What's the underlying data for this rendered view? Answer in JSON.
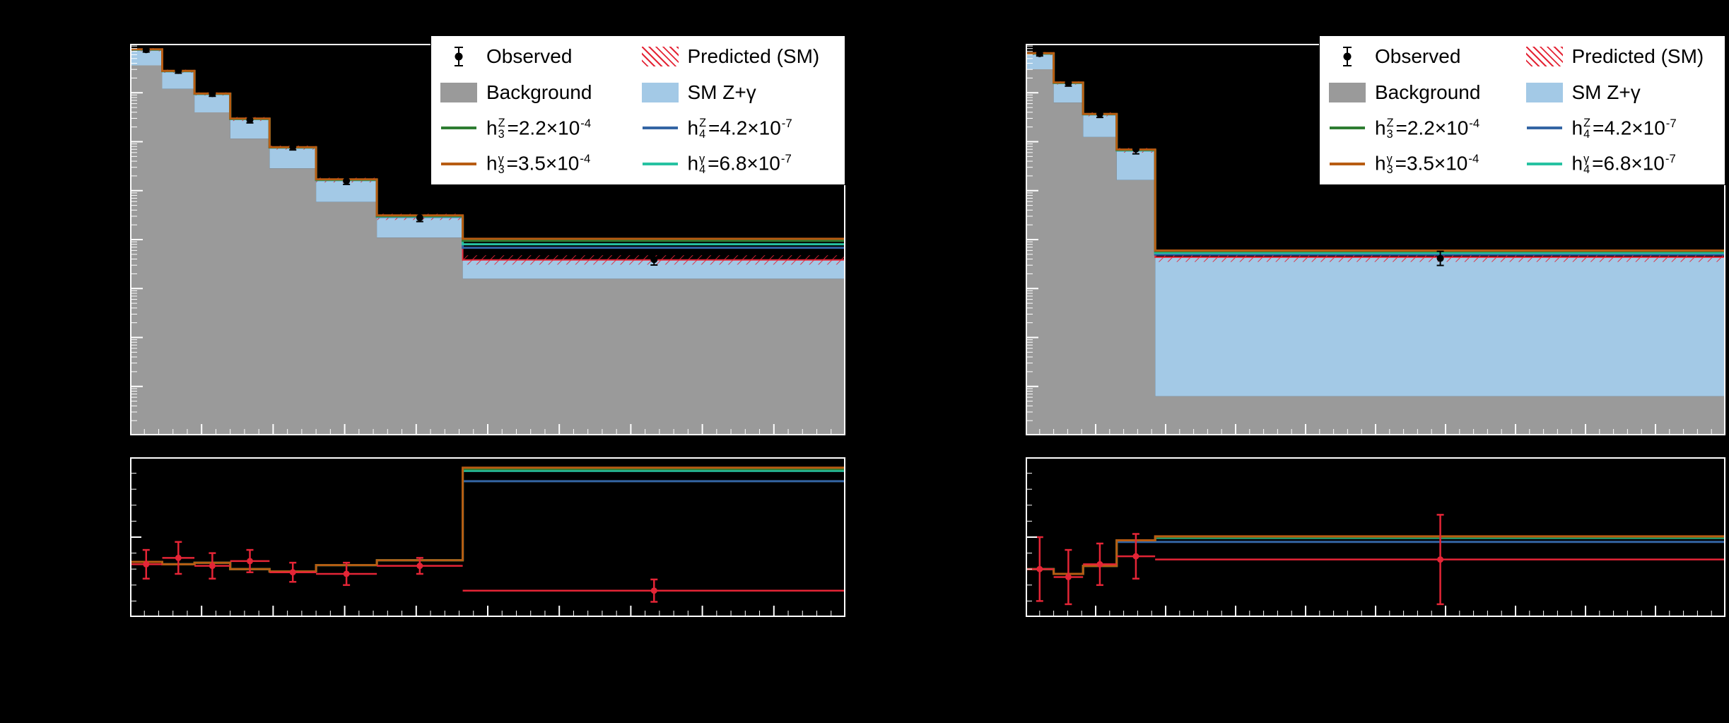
{
  "page": {
    "background": "#000000"
  },
  "colors": {
    "frame": "#ffffff",
    "background": "#9a9a9a",
    "sm_zgamma": "#a3c9e6",
    "predicted": "#e42536",
    "observed": "#000000",
    "h3z": "#2e7d32",
    "h3gamma": "#b85c12",
    "h4z": "#3465a4",
    "h4gamma": "#27c2a2"
  },
  "legend": {
    "observed": "Observed",
    "predicted": "Predicted (SM)",
    "background": "Background",
    "sm_zgamma": "SM Z+γ",
    "h3z": {
      "base": "h",
      "sup": "Z",
      "sub": "3",
      "eq": "=2.2×10",
      "exp": "-4"
    },
    "h4z": {
      "base": "h",
      "sup": "Z",
      "sub": "4",
      "eq": "=4.2×10",
      "exp": "-7"
    },
    "h3gamma": {
      "base": "h",
      "sup": "γ",
      "sub": "3",
      "eq": "=3.5×10",
      "exp": "-4"
    },
    "h4gamma": {
      "base": "h",
      "sup": "γ",
      "sub": "4",
      "eq": "=6.8×10",
      "exp": "-7"
    }
  },
  "chart_data": [
    {
      "id": "left-panel",
      "type": "bar",
      "subtype": "stacked-step-histogram-with-lines-and-points",
      "y_scale": "log",
      "value_units": "fractions of plot frame (x: 0-1 left to right, y: 0-1 bottom to top); numeric axis tick labels are not legible in the source image",
      "legend_position": "top-right",
      "bin_edges": [
        0,
        0.045,
        0.09,
        0.14,
        0.195,
        0.26,
        0.345,
        0.465,
        1.0
      ],
      "stack": {
        "background_top": [
          0.945,
          0.885,
          0.825,
          0.758,
          0.682,
          0.596,
          0.505,
          0.4
        ],
        "total_sm_top": [
          0.985,
          0.93,
          0.872,
          0.808,
          0.735,
          0.652,
          0.558,
          0.448
        ],
        "prediction_band_halfwidth": [
          0.004,
          0.004,
          0.004,
          0.005,
          0.005,
          0.006,
          0.008,
          0.012
        ]
      },
      "lines": {
        "h3z": [
          0.9855,
          0.9305,
          0.8725,
          0.8085,
          0.7355,
          0.653,
          0.56,
          0.497
        ],
        "h3gamma": [
          0.986,
          0.931,
          0.873,
          0.809,
          0.736,
          0.654,
          0.562,
          0.502
        ],
        "h4z": [
          0.985,
          0.93,
          0.872,
          0.808,
          0.735,
          0.652,
          0.558,
          0.479
        ],
        "h4gamma": [
          0.985,
          0.93,
          0.872,
          0.808,
          0.735,
          0.652,
          0.559,
          0.488
        ]
      },
      "observed": {
        "x": [
          0.0225,
          0.0675,
          0.115,
          0.1675,
          0.2275,
          0.3025,
          0.405,
          0.7325
        ],
        "y": [
          0.985,
          0.932,
          0.873,
          0.806,
          0.737,
          0.65,
          0.556,
          0.449
        ],
        "yerr": [
          0.006,
          0.007,
          0.007,
          0.008,
          0.008,
          0.009,
          0.01,
          0.014
        ]
      },
      "ratio": {
        "lines": {
          "h3z": [
            0.345,
            0.33,
            0.34,
            0.3,
            0.285,
            0.325,
            0.355,
            0.925
          ],
          "h3gamma": [
            0.345,
            0.33,
            0.34,
            0.3,
            0.285,
            0.325,
            0.355,
            0.935
          ],
          "h4z": [
            0.345,
            0.33,
            0.34,
            0.3,
            0.285,
            0.325,
            0.355,
            0.85
          ],
          "h4gamma": [
            0.345,
            0.33,
            0.34,
            0.3,
            0.285,
            0.325,
            0.355,
            0.915
          ]
        },
        "points": {
          "x": [
            0.0225,
            0.0675,
            0.115,
            0.1675,
            0.2275,
            0.3025,
            0.405,
            0.7325
          ],
          "y": [
            0.33,
            0.37,
            0.32,
            0.35,
            0.28,
            0.27,
            0.32,
            0.165
          ],
          "yerr": [
            0.09,
            0.1,
            0.08,
            0.07,
            0.06,
            0.07,
            0.05,
            0.07
          ]
        }
      }
    },
    {
      "id": "right-panel",
      "type": "bar",
      "subtype": "stacked-step-histogram-with-lines-and-points",
      "y_scale": "log",
      "value_units": "fractions of plot frame (x: 0-1 left to right, y: 0-1 bottom to top); numeric axis tick labels are not legible in the source image",
      "legend_position": "top-right",
      "bin_edges": [
        0,
        0.04,
        0.082,
        0.13,
        0.185,
        1.0
      ],
      "stack": {
        "background_top": [
          0.935,
          0.85,
          0.762,
          0.652,
          0.1
        ],
        "total_sm_top": [
          0.975,
          0.9,
          0.82,
          0.728,
          0.455
        ],
        "prediction_band_halfwidth": [
          0.004,
          0.004,
          0.005,
          0.006,
          0.012
        ]
      },
      "lines": {
        "h3z": [
          0.9755,
          0.9005,
          0.8205,
          0.729,
          0.47
        ],
        "h3gamma": [
          0.976,
          0.901,
          0.821,
          0.73,
          0.472
        ],
        "h4z": [
          0.975,
          0.9,
          0.82,
          0.728,
          0.462
        ],
        "h4gamma": [
          0.975,
          0.9,
          0.82,
          0.728,
          0.466
        ]
      },
      "observed": {
        "x": [
          0.02,
          0.061,
          0.106,
          0.1575,
          0.5925
        ],
        "y": [
          0.975,
          0.9,
          0.821,
          0.731,
          0.452
        ],
        "yerr": [
          0.006,
          0.008,
          0.009,
          0.012,
          0.018
        ]
      },
      "ratio": {
        "lines": {
          "h3z": [
            0.3,
            0.27,
            0.32,
            0.48,
            0.5
          ],
          "h3gamma": [
            0.3,
            0.27,
            0.32,
            0.48,
            0.505
          ],
          "h4z": [
            0.3,
            0.27,
            0.32,
            0.47,
            0.47
          ],
          "h4gamma": [
            0.3,
            0.27,
            0.32,
            0.48,
            0.495
          ]
        },
        "points": {
          "x": [
            0.02,
            0.061,
            0.106,
            0.1575,
            0.5925
          ],
          "y": [
            0.3,
            0.25,
            0.33,
            0.38,
            0.36
          ],
          "yerr": [
            0.2,
            0.17,
            0.13,
            0.14,
            0.28
          ]
        }
      }
    }
  ]
}
